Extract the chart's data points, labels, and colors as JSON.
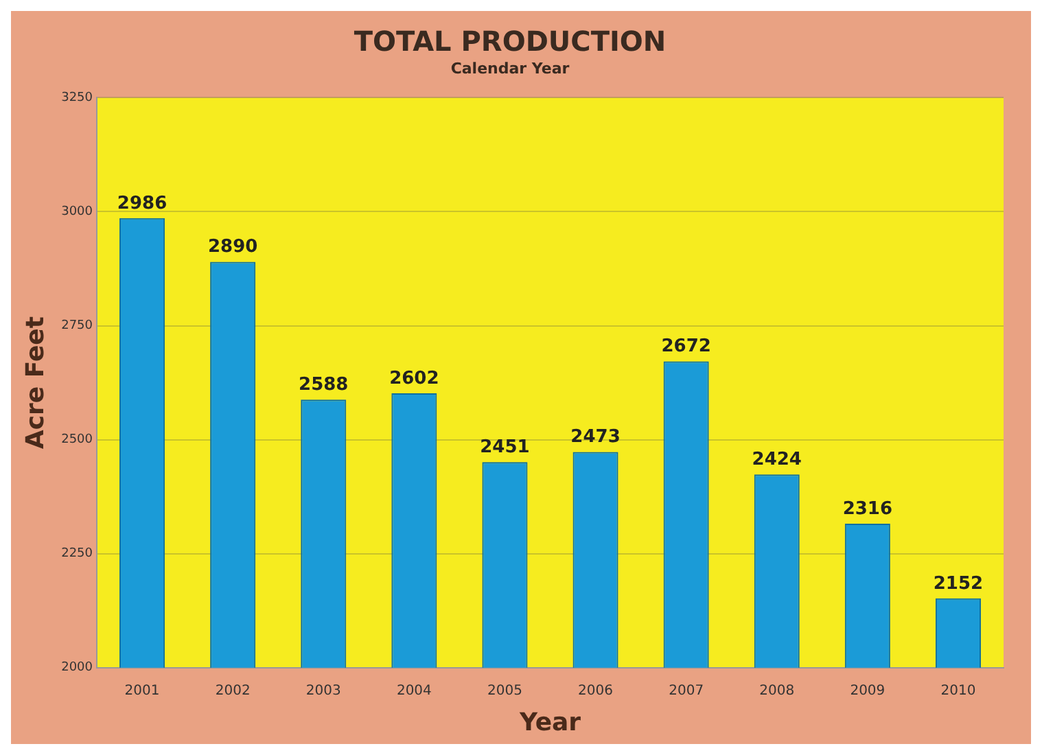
{
  "chart_data": {
    "type": "bar",
    "title": "TOTAL PRODUCTION",
    "subtitle": "Calendar Year",
    "xlabel": "Year",
    "ylabel": "Acre Feet",
    "categories": [
      "2001",
      "2002",
      "2003",
      "2004",
      "2005",
      "2006",
      "2007",
      "2008",
      "2009",
      "2010"
    ],
    "values": [
      2986,
      2890,
      2588,
      2602,
      2451,
      2473,
      2672,
      2424,
      2316,
      2152
    ],
    "color": "#1b9bd7",
    "ylim": [
      2000,
      3250
    ],
    "yticks": [
      2000,
      2250,
      2500,
      2750,
      3000,
      3250
    ],
    "grid": "y",
    "data_labels": true
  }
}
